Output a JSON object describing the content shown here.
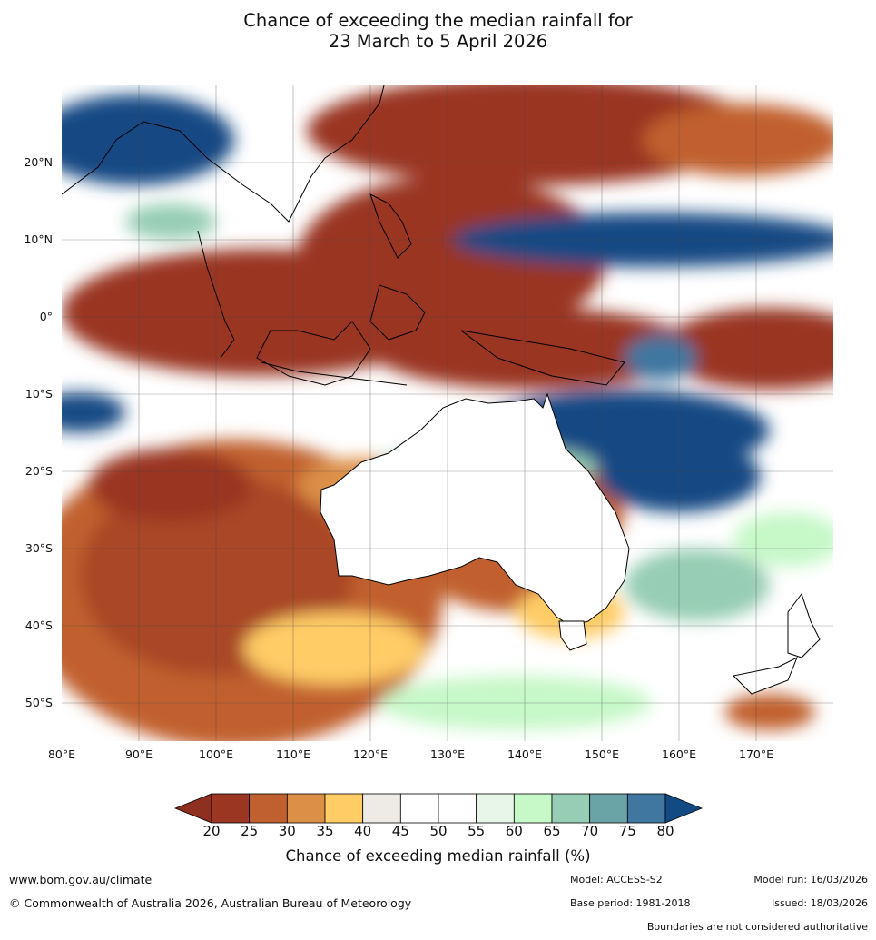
{
  "title_line1": "Chance of exceeding the median rainfall for",
  "title_line2": "23 March to 5 April 2026",
  "lat_labels": [
    "20°N",
    "10°N",
    "0°",
    "10°S",
    "20°S",
    "30°S",
    "40°S",
    "50°S"
  ],
  "lon_labels": [
    "80°E",
    "90°E",
    "100°E",
    "110°E",
    "120°E",
    "130°E",
    "140°E",
    "150°E",
    "160°E",
    "170°E"
  ],
  "colorbar": {
    "ticks": [
      "20",
      "25",
      "30",
      "35",
      "40",
      "45",
      "50",
      "55",
      "60",
      "65",
      "70",
      "75",
      "80"
    ],
    "colors": [
      "#9a3622",
      "#c1602f",
      "#dc8f47",
      "#ffcc66",
      "#eeebe6",
      "#ffffff",
      "#ffffff",
      "#e8f5e9",
      "#c6f8c8",
      "#96cdb4",
      "#6aa4a6",
      "#3f77a0"
    ],
    "extend_low_color": "#8e2f1f",
    "extend_high_color": "#124a84",
    "label": "Chance of exceeding median rainfall (%)"
  },
  "footer": {
    "website": "www.bom.gov.au/climate",
    "copyright": "© Commonwealth of Australia 2026, Australian Bureau of Meteorology",
    "model": "Model: ACCESS-S2",
    "model_run": "Model run: 16/03/2026",
    "base_period": "Base period: 1981-2018",
    "issued": "Issued: 18/03/2026",
    "disclaimer": "Boundaries are not considered authoritative"
  }
}
